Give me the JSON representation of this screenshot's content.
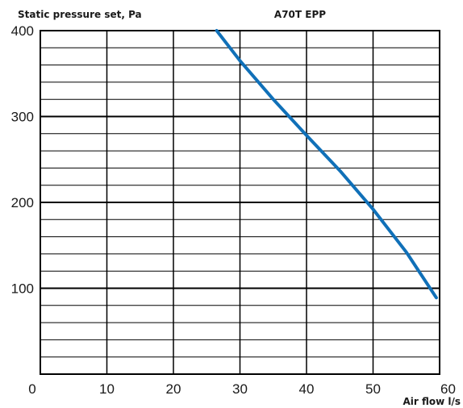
{
  "chart_data": {
    "type": "line",
    "title": "A70T EPP",
    "ylabel": "Static pressure set, Pa",
    "xlabel": "Air flow l/s",
    "xlim": [
      0,
      60
    ],
    "ylim": [
      0,
      400
    ],
    "x_ticks": [
      "0",
      "10",
      "20",
      "30",
      "40",
      "50",
      "60"
    ],
    "y_ticks": [
      "100",
      "200",
      "300",
      "400"
    ],
    "x_major_step": 10,
    "y_major_step": 100,
    "y_minor_step": 20,
    "grid": true,
    "series": [
      {
        "color": "#1070b8",
        "x": [
          26.5,
          30,
          35,
          40,
          45,
          50,
          55,
          59.5
        ],
        "y": [
          400,
          365,
          320,
          278,
          237,
          192,
          142,
          89
        ]
      }
    ]
  }
}
